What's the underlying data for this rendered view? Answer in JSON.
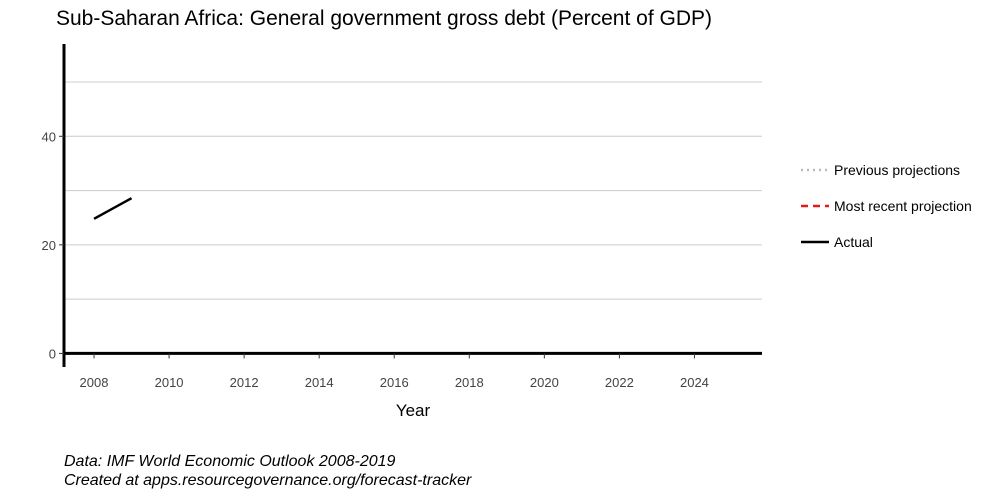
{
  "chart_data": {
    "type": "line",
    "title": "Sub-Saharan Africa: General government gross debt (Percent of GDP)",
    "xlabel": "Year",
    "ylabel": "",
    "xlim": [
      2007.2,
      2025.8
    ],
    "ylim": [
      -2.5,
      57
    ],
    "x_ticks": [
      2008,
      2010,
      2012,
      2014,
      2016,
      2018,
      2020,
      2022,
      2024
    ],
    "y_ticks": [
      0,
      20,
      40
    ],
    "y_gridlines": [
      0,
      10,
      20,
      30,
      40,
      50
    ],
    "grid": true,
    "legend_position": "right",
    "legend": [
      {
        "label": "Previous projections",
        "style": "dotted",
        "color": "#bbbbbb"
      },
      {
        "label": "Most recent projection",
        "style": "dashed",
        "color": "#e41a1c"
      },
      {
        "label": "Actual",
        "style": "solid",
        "color": "#000000"
      }
    ],
    "series": [
      {
        "name": "Actual",
        "style": "solid",
        "color": "#000000",
        "x": [
          2008,
          2009
        ],
        "y": [
          24.8,
          28.6
        ]
      }
    ]
  },
  "caption": {
    "line1": "Data: IMF World Economic Outlook 2008-2019",
    "line2": "Created at apps.resourcegovernance.org/forecast-tracker"
  }
}
